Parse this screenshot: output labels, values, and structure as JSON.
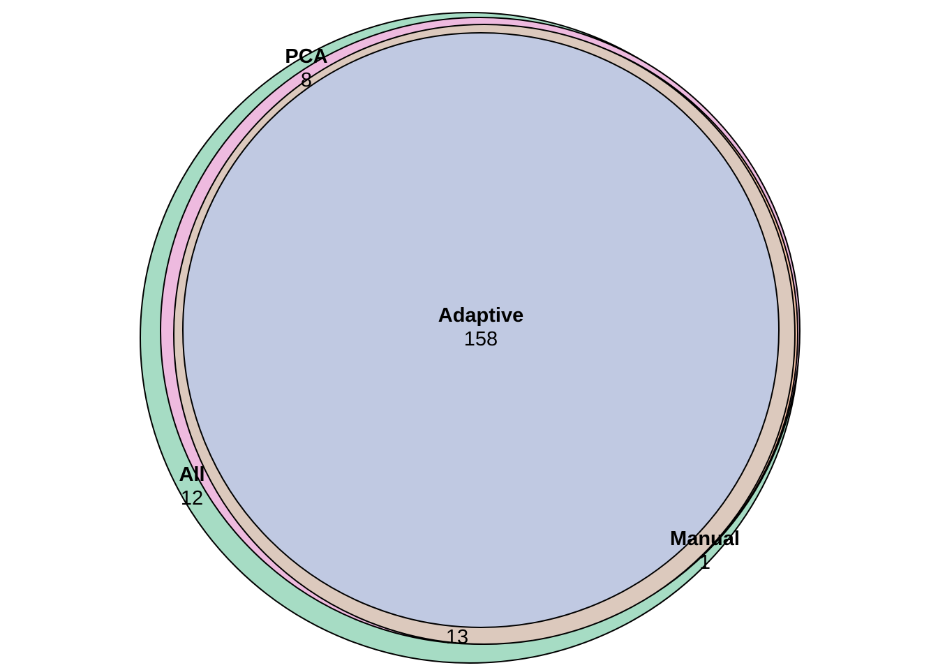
{
  "diagram": {
    "type": "euler-venn",
    "sets": [
      {
        "id": "all",
        "name": "All",
        "color": "#a6dcc4"
      },
      {
        "id": "pca",
        "name": "PCA",
        "color": "#eebadf"
      },
      {
        "id": "manual",
        "name": "Manual",
        "color": "#f6c2a8"
      },
      {
        "id": "adaptive",
        "name": "Adaptive",
        "color": "#c0c9e2"
      }
    ],
    "labels": {
      "all": {
        "name": "All",
        "count": "12"
      },
      "pca": {
        "name": "PCA",
        "count": "8"
      },
      "manual": {
        "name": "Manual",
        "count": "1"
      },
      "adaptive": {
        "name": "Adaptive",
        "count": "158"
      },
      "overlap": {
        "count": "13"
      }
    },
    "overlap_color": "#dcc9bd"
  }
}
